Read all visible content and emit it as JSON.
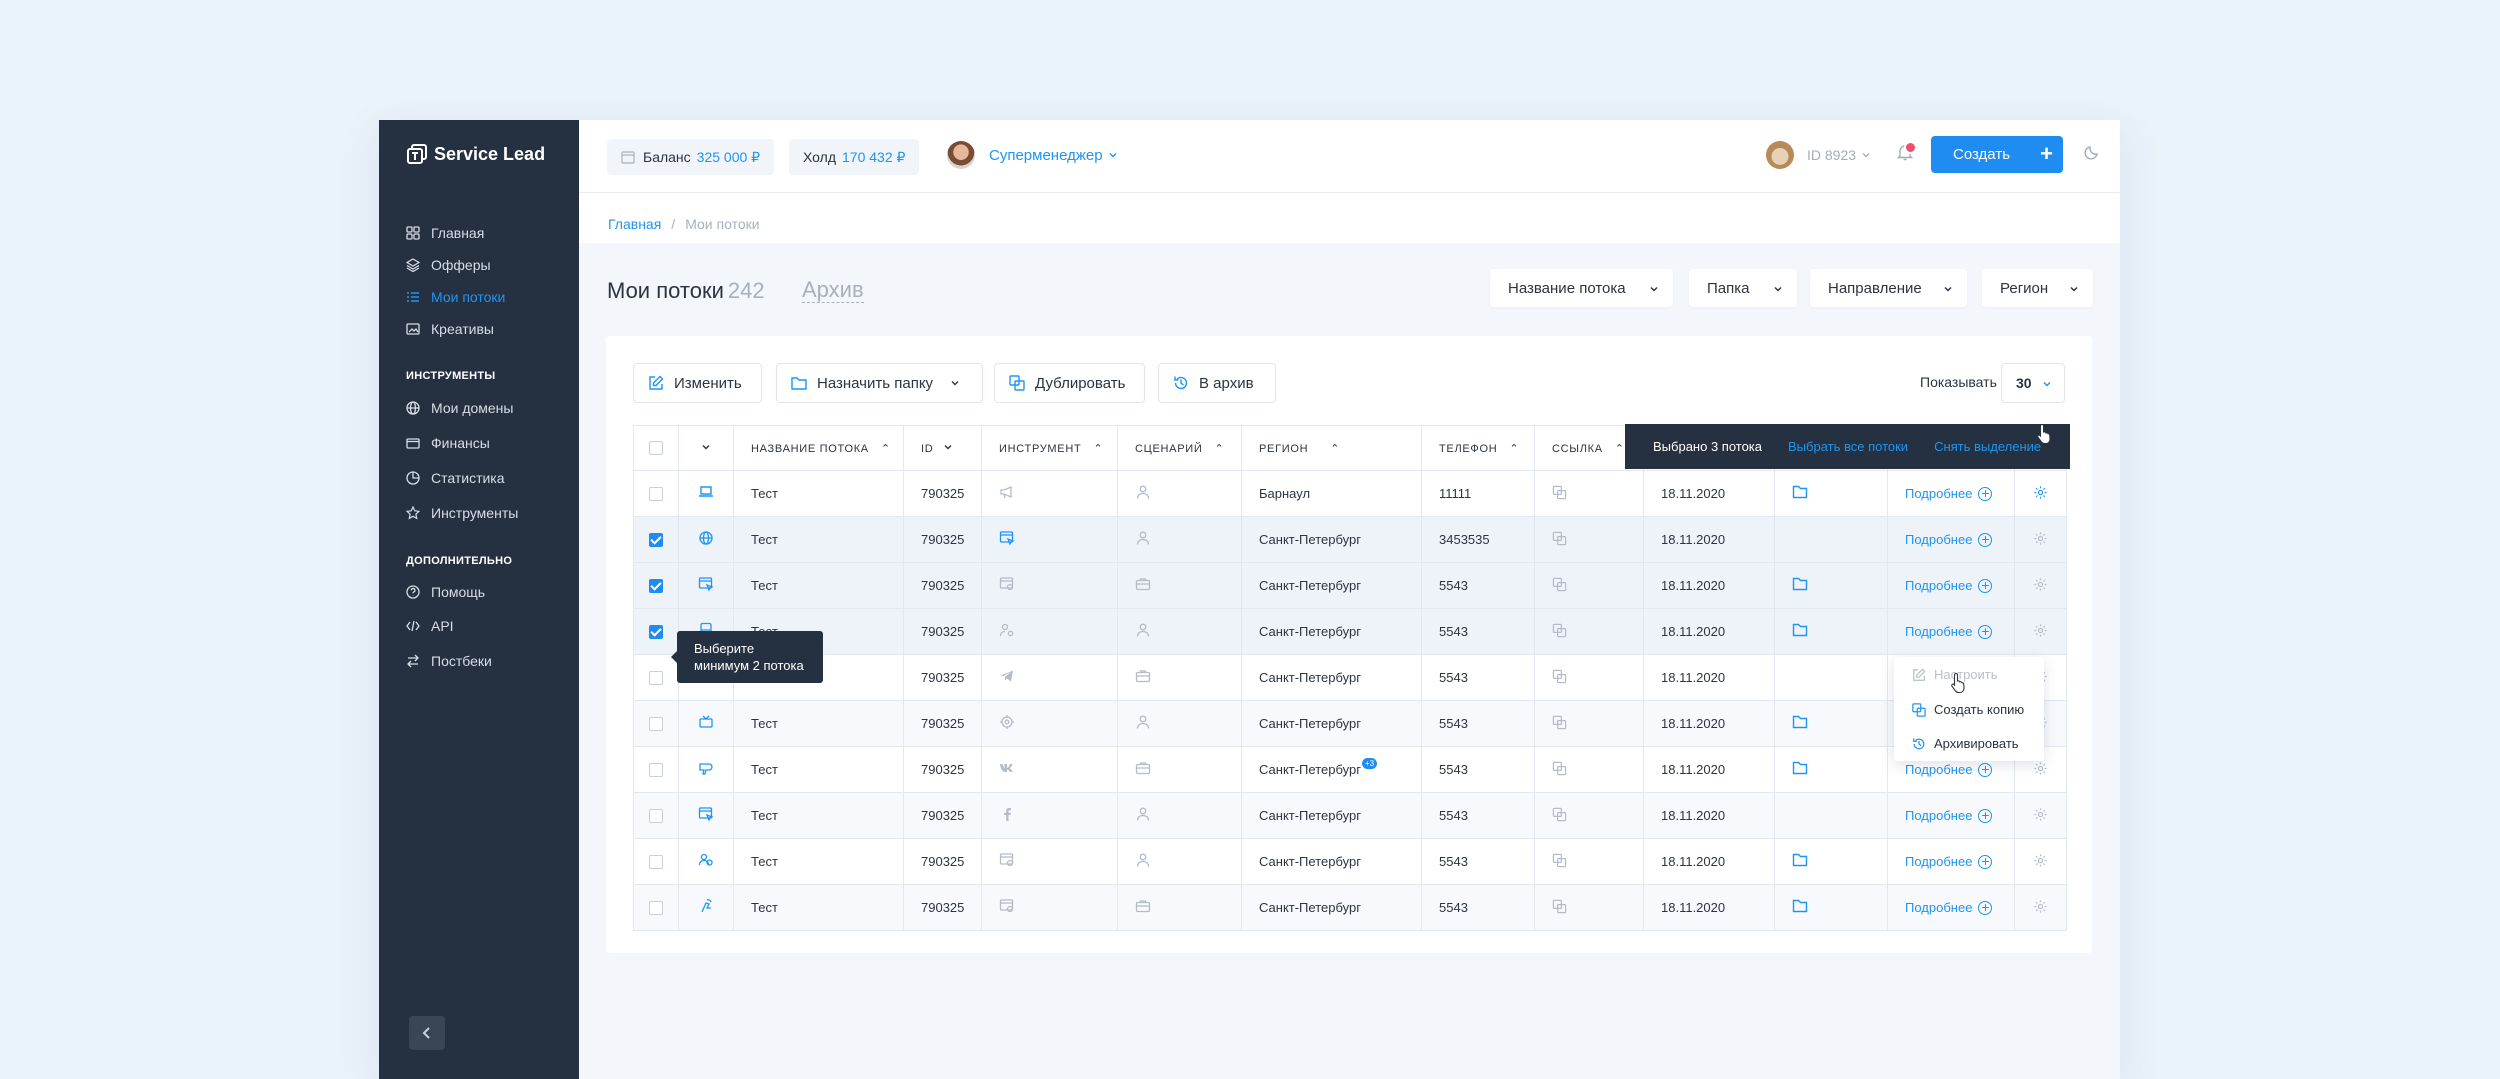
{
  "app": {
    "name": "Service Lead"
  },
  "sidebar": {
    "items": [
      {
        "label": "Главная",
        "icon": "grid-icon"
      },
      {
        "label": "Офферы",
        "icon": "layers-icon"
      },
      {
        "label": "Мои потоки",
        "icon": "list-icon",
        "active": true
      },
      {
        "label": "Креативы",
        "icon": "image-icon"
      }
    ],
    "tools_title": "ИНСТРУМЕНТЫ",
    "tools": [
      {
        "label": "Мои домены",
        "icon": "globe-icon"
      },
      {
        "label": "Финансы",
        "icon": "wallet-icon"
      },
      {
        "label": "Статистика",
        "icon": "pie-chart-icon"
      },
      {
        "label": "Инструменты",
        "icon": "star-icon"
      }
    ],
    "extra_title": "ДОПОЛНИТЕЛЬНО",
    "extra": [
      {
        "label": "Помощь",
        "icon": "help-icon"
      },
      {
        "label": "API",
        "icon": "code-icon"
      },
      {
        "label": "Постбеки",
        "icon": "swap-icon"
      }
    ]
  },
  "header": {
    "balance_label": "Баланс",
    "balance_value": "325 000 ₽",
    "hold_label": "Холд",
    "hold_value": "170 432 ₽",
    "user_name": "Суперменеджер",
    "user_id": "ID 8923",
    "create_label": "Создать"
  },
  "breadcrumbs": {
    "home": "Главная",
    "separator": "/",
    "current": "Мои потоки"
  },
  "page": {
    "title": "Мои потоки",
    "count": "242",
    "archive_tab": "Архив"
  },
  "filters": [
    "Название потока",
    "Папка",
    "Направление",
    "Регион"
  ],
  "toolbar": {
    "edit": "Изменить",
    "assign_folder": "Назначить папку",
    "duplicate": "Дублировать",
    "to_archive": "В архив",
    "show_label": "Показывать",
    "per_page": "30"
  },
  "table": {
    "columns": [
      "НАЗВАНИЕ ПОТОКА",
      "ID",
      "ИНСТРУМЕНТ",
      "СЦЕНАРИЙ",
      "РЕГИОН",
      "ТЕЛЕФОН",
      "ССЫЛКА"
    ],
    "more_label": "Подробнее",
    "rows": [
      {
        "checked": false,
        "name": "Тест",
        "id": "790325",
        "region": "Барнаул",
        "phone": "11111",
        "date": "18.11.2020",
        "folder": true,
        "type_icon": "laptop-icon",
        "tool_icon": "megaphone-icon",
        "scenario_icon": "person-icon"
      },
      {
        "checked": true,
        "name": "Тест",
        "id": "790325",
        "region": "Санкт-Петербург",
        "phone": "3453535",
        "date": "18.11.2020",
        "folder": false,
        "type_icon": "globe-icon",
        "tool_icon": "browser-cursor-icon",
        "scenario_icon": "person-icon"
      },
      {
        "checked": true,
        "name": "Тест",
        "id": "790325",
        "region": "Санкт-Петербург",
        "phone": "5543",
        "date": "18.11.2020",
        "folder": true,
        "type_icon": "browser-cursor-icon",
        "tool_icon": "browser-settings-icon",
        "scenario_icon": "briefcase-icon"
      },
      {
        "checked": true,
        "name": "Тест",
        "id": "790325",
        "region": "Санкт-Петербург",
        "phone": "5543",
        "date": "18.11.2020",
        "folder": true,
        "type_icon": "bus-icon",
        "tool_icon": "person-settings-icon",
        "scenario_icon": "person-icon"
      },
      {
        "checked": false,
        "name": "Тест",
        "id": "790325",
        "region": "Санкт-Петербург",
        "phone": "5543",
        "date": "18.11.2020",
        "folder": false,
        "type_icon": "graduation-cap-icon",
        "tool_icon": "telegram-icon",
        "scenario_icon": "briefcase-icon"
      },
      {
        "checked": false,
        "name": "Тест",
        "id": "790325",
        "region": "Санкт-Петербург",
        "phone": "5543",
        "date": "18.11.2020",
        "folder": true,
        "type_icon": "tv-icon",
        "tool_icon": "target-icon",
        "scenario_icon": "person-icon"
      },
      {
        "checked": false,
        "name": "Тест",
        "id": "790325",
        "region": "Санкт-Петербург",
        "region_badge": "+3",
        "phone": "5543",
        "date": "18.11.2020",
        "folder": true,
        "type_icon": "hairdryer-icon",
        "tool_icon": "vk-icon",
        "scenario_icon": "briefcase-icon"
      },
      {
        "checked": false,
        "name": "Тест",
        "id": "790325",
        "region": "Санкт-Петербург",
        "phone": "5543",
        "date": "18.11.2020",
        "folder": false,
        "type_icon": "browser-cursor-icon",
        "tool_icon": "facebook-icon",
        "scenario_icon": "person-icon"
      },
      {
        "checked": false,
        "name": "Тест",
        "id": "790325",
        "region": "Санкт-Петербург",
        "phone": "5543",
        "date": "18.11.2020",
        "folder": true,
        "type_icon": "people-icon",
        "tool_icon": "browser-settings-icon",
        "scenario_icon": "person-icon"
      },
      {
        "checked": false,
        "name": "Тест",
        "id": "790325",
        "region": "Санкт-Петербург",
        "phone": "5543",
        "date": "18.11.2020",
        "folder": true,
        "type_icon": "tap-icon",
        "tool_icon": "browser-settings-icon",
        "scenario_icon": "briefcase-icon"
      }
    ]
  },
  "bulk": {
    "selected": "Выбрано 3 потока",
    "select_all": "Выбрать все потоки",
    "clear": "Снять выделение"
  },
  "tooltip": {
    "line1": "Выберите",
    "line2": "минимум 2 потока"
  },
  "row_menu": {
    "configure": "Настроить",
    "copy": "Создать копию",
    "archive": "Архивировать"
  },
  "colors": {
    "accent": "#1e8cf0",
    "sidebar": "#253141",
    "notification": "#f0506e"
  }
}
